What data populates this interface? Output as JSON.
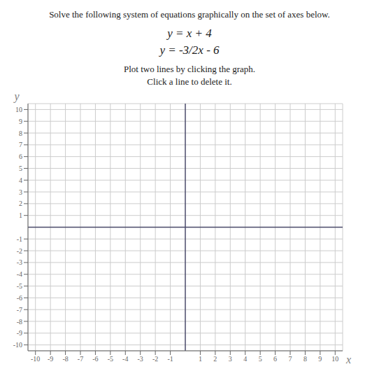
{
  "chart_data": {
    "type": "plane",
    "title": "Solve the following system of equations graphically on the set of axes below.",
    "annotations": [
      "y = x + 4",
      "y = -3/2x - 6",
      "Plot two lines by clicking the graph.",
      "Click a line to delete it."
    ],
    "xlabel": "x",
    "ylabel": "y",
    "xlim": [
      -10.5,
      10.5
    ],
    "ylim": [
      -10.5,
      10.5
    ],
    "xticks": [
      -10,
      -9,
      -8,
      -7,
      -6,
      -5,
      -4,
      -3,
      -2,
      -1,
      1,
      2,
      3,
      4,
      5,
      6,
      7,
      8,
      9,
      10
    ],
    "yticks": [
      -10,
      -9,
      -8,
      -7,
      -6,
      -5,
      -4,
      -3,
      -2,
      -1,
      1,
      2,
      3,
      4,
      5,
      6,
      7,
      8,
      9,
      10
    ],
    "grid": true
  }
}
